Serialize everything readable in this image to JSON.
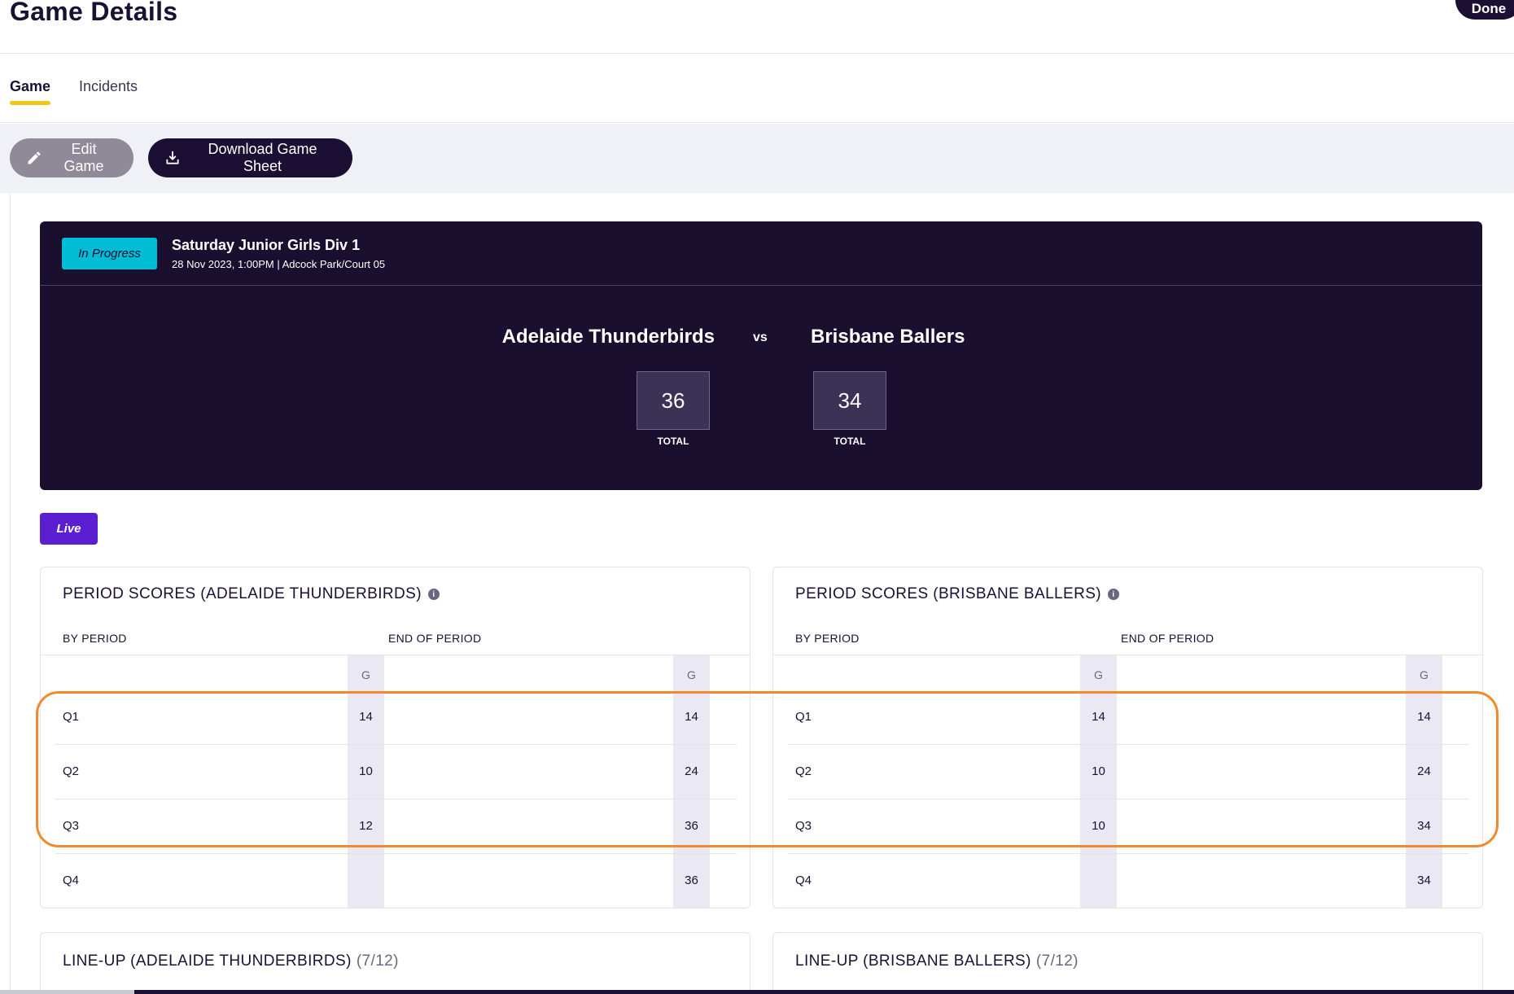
{
  "header": {
    "title": "Game Details",
    "done_label": "Done"
  },
  "tabs": [
    {
      "label": "Game",
      "active": true
    },
    {
      "label": "Incidents",
      "active": false
    }
  ],
  "actions": {
    "edit_label": "Edit Game",
    "download_label": "Download Game Sheet"
  },
  "game": {
    "status": "In Progress",
    "competition": "Saturday Junior Girls Div 1",
    "meta": "28 Nov 2023, 1:00PM | Adcock Park/Court 05",
    "home": {
      "name": "Adelaide Thunderbirds",
      "total": "36",
      "total_label": "TOTAL"
    },
    "vs": "vs",
    "away": {
      "name": "Brisbane Ballers",
      "total": "34",
      "total_label": "TOTAL"
    }
  },
  "live_label": "Live",
  "period_scores": [
    {
      "title": "PERIOD SCORES (ADELAIDE THUNDERBIRDS)",
      "by_period_label": "BY PERIOD",
      "end_period_label": "END OF PERIOD",
      "g_label": "G",
      "rows": [
        {
          "period": "Q1",
          "by": "14",
          "end": "14"
        },
        {
          "period": "Q2",
          "by": "10",
          "end": "24"
        },
        {
          "period": "Q3",
          "by": "12",
          "end": "36"
        },
        {
          "period": "Q4",
          "by": "",
          "end": "36"
        }
      ]
    },
    {
      "title": "PERIOD SCORES (BRISBANE BALLERS)",
      "by_period_label": "BY PERIOD",
      "end_period_label": "END OF PERIOD",
      "g_label": "G",
      "rows": [
        {
          "period": "Q1",
          "by": "14",
          "end": "14"
        },
        {
          "period": "Q2",
          "by": "10",
          "end": "24"
        },
        {
          "period": "Q3",
          "by": "10",
          "end": "34"
        },
        {
          "period": "Q4",
          "by": "",
          "end": "34"
        }
      ]
    }
  ],
  "lineups": [
    {
      "title": "LINE-UP (ADELAIDE THUNDERBIRDS)",
      "count": "(7/12)"
    },
    {
      "title": "LINE-UP (BRISBANE BALLERS)",
      "count": "(7/12)"
    }
  ],
  "colors": {
    "brand_dark": "#1a0f2e",
    "accent_yellow": "#f5c518",
    "status_cyan": "#00bcd4",
    "live_purple": "#5b1fd1",
    "highlight_orange": "#f08a2c"
  }
}
